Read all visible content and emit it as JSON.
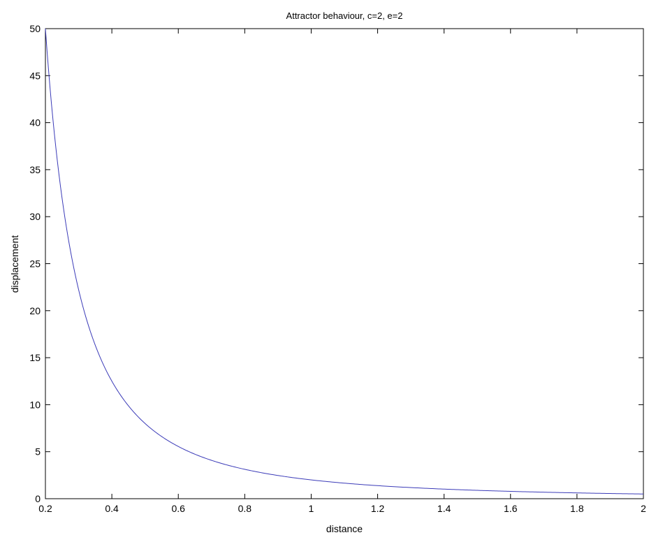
{
  "chart_data": {
    "type": "line",
    "title": "Attractor behaviour, c=2, e=2",
    "xlabel": "distance",
    "ylabel": "displacement",
    "xlim": [
      0.2,
      2
    ],
    "ylim": [
      0,
      50
    ],
    "grid": false,
    "line_color": "#3b3bb8",
    "function": "2/x^2",
    "xticks": [
      "0.2",
      "0.4",
      "0.6",
      "0.8",
      "1",
      "1.2",
      "1.4",
      "1.6",
      "1.8",
      "2"
    ],
    "yticks": [
      "0",
      "5",
      "10",
      "15",
      "20",
      "25",
      "30",
      "35",
      "40",
      "45",
      "50"
    ],
    "series": [
      {
        "x": [
          0.2,
          0.22,
          0.25,
          0.3,
          0.35,
          0.4,
          0.45,
          0.5,
          0.6,
          0.7,
          0.8,
          0.9,
          1.0,
          1.2,
          1.4,
          1.6,
          1.8,
          2.0
        ],
        "values": [
          50,
          41.3,
          32,
          22.2,
          16.3,
          12.5,
          9.9,
          8,
          5.6,
          4.1,
          3.1,
          2.5,
          2,
          1.4,
          1.0,
          0.8,
          0.6,
          0.5
        ]
      }
    ]
  }
}
